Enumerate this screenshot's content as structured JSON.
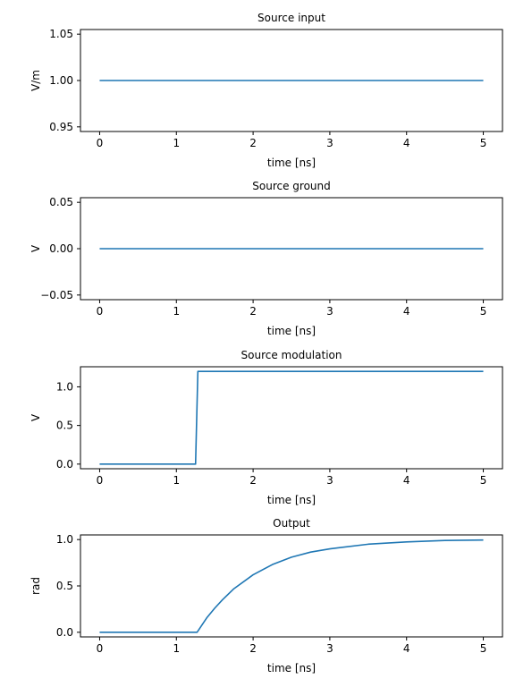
{
  "chart_data": [
    {
      "type": "line",
      "title": "Source input",
      "xlabel": "time [ns]",
      "ylabel": "V/m",
      "xlim": [
        -0.25,
        5.25
      ],
      "ylim": [
        0.945,
        1.055
      ],
      "xticks": [
        0,
        1,
        2,
        3,
        4,
        5
      ],
      "yticks": [
        0.95,
        1.0,
        1.05
      ],
      "ytick_labels": [
        "0.95",
        "1.00",
        "1.05"
      ],
      "grid": false,
      "series": [
        {
          "color": "#1f77b4",
          "x": [
            0,
            5
          ],
          "y": [
            1.0,
            1.0
          ]
        }
      ]
    },
    {
      "type": "line",
      "title": "Source ground",
      "xlabel": "time [ns]",
      "ylabel": "V",
      "xlim": [
        -0.25,
        5.25
      ],
      "ylim": [
        -0.055,
        0.055
      ],
      "xticks": [
        0,
        1,
        2,
        3,
        4,
        5
      ],
      "yticks": [
        -0.05,
        0.0,
        0.05
      ],
      "ytick_labels": [
        "−0.05",
        "0.00",
        "0.05"
      ],
      "grid": false,
      "series": [
        {
          "color": "#1f77b4",
          "x": [
            0,
            5
          ],
          "y": [
            0.0,
            0.0
          ]
        }
      ]
    },
    {
      "type": "line",
      "title": "Source modulation",
      "xlabel": "time [ns]",
      "ylabel": "V",
      "xlim": [
        -0.25,
        5.25
      ],
      "ylim": [
        -0.06,
        1.26
      ],
      "xticks": [
        0,
        1,
        2,
        3,
        4,
        5
      ],
      "yticks": [
        0.0,
        0.5,
        1.0
      ],
      "ytick_labels": [
        "0.0",
        "0.5",
        "1.0"
      ],
      "grid": false,
      "series": [
        {
          "color": "#1f77b4",
          "x": [
            0,
            1.25,
            1.28,
            5
          ],
          "y": [
            0.0,
            0.0,
            1.2,
            1.2
          ]
        }
      ]
    },
    {
      "type": "line",
      "title": "Output",
      "xlabel": "time [ns]",
      "ylabel": "rad",
      "xlim": [
        -0.25,
        5.25
      ],
      "ylim": [
        -0.05,
        1.05
      ],
      "xticks": [
        0,
        1,
        2,
        3,
        4,
        5
      ],
      "yticks": [
        0.0,
        0.5,
        1.0
      ],
      "ytick_labels": [
        "0.0",
        "0.5",
        "1.0"
      ],
      "grid": false,
      "series": [
        {
          "color": "#1f77b4",
          "x": [
            0,
            1.27,
            1.4,
            1.5,
            1.6,
            1.75,
            2.0,
            2.25,
            2.5,
            2.75,
            3.0,
            3.5,
            4.0,
            4.5,
            5.0
          ],
          "y": [
            0.0,
            0.0,
            0.16,
            0.26,
            0.35,
            0.47,
            0.62,
            0.73,
            0.81,
            0.865,
            0.9,
            0.95,
            0.975,
            0.99,
            0.995
          ]
        }
      ]
    }
  ]
}
